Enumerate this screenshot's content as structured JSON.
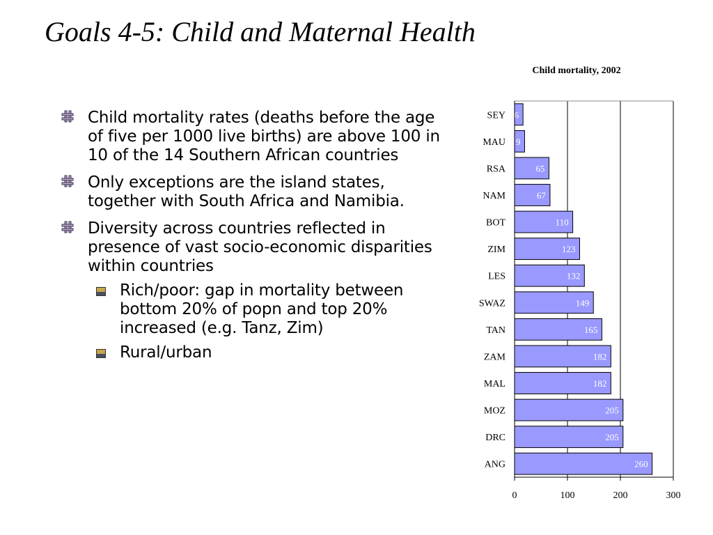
{
  "slide": {
    "title": "Goals 4-5: Child and Maternal Health",
    "bullets": [
      {
        "text": "Child mortality rates (deaths before the age of five per 1000 live births) are above 100 in 10 of the 14 Southern African countries",
        "icon": "hash-bullet-icon"
      },
      {
        "text": "Only exceptions are the island states, together with South Africa and Namibia.",
        "icon": "hash-bullet-icon"
      },
      {
        "text": "Diversity across countries reflected in presence of vast socio-economic disparities within countries",
        "icon": "hash-bullet-icon",
        "sub_bullets": [
          {
            "text": "Rich/poor: gap in mortality between bottom 20% of popn and top 20% increased (e.g. Tanz, Zim)",
            "icon": "square-bullet-icon"
          },
          {
            "text": "Rural/urban",
            "icon": "square-bullet-icon"
          }
        ]
      }
    ]
  },
  "colors": {
    "bar_fill": "#9999ff",
    "bar_stroke": "#000000",
    "bullet_outline": "#3c3350",
    "bullet_fill": "#b8a6c8",
    "sub_bullet_top": "#c7a64c",
    "sub_bullet_bottom": "#4a4f60"
  },
  "chart_data": {
    "type": "bar",
    "orientation": "horizontal",
    "title": "Child mortality, 2002",
    "categories": [
      "SEY",
      "MAU",
      "RSA",
      "NAM",
      "BOT",
      "ZIM",
      "LES",
      "SWAZ",
      "TAN",
      "ZAM",
      "MAL",
      "MOZ",
      "DRC",
      "ANG"
    ],
    "values": [
      16,
      19,
      65,
      67,
      110,
      123,
      132,
      149,
      165,
      182,
      182,
      205,
      205,
      260
    ],
    "xlim": [
      0,
      300
    ],
    "xticks": [
      0,
      100,
      200,
      300
    ],
    "grid": true,
    "data_labels": true,
    "legend": false
  }
}
